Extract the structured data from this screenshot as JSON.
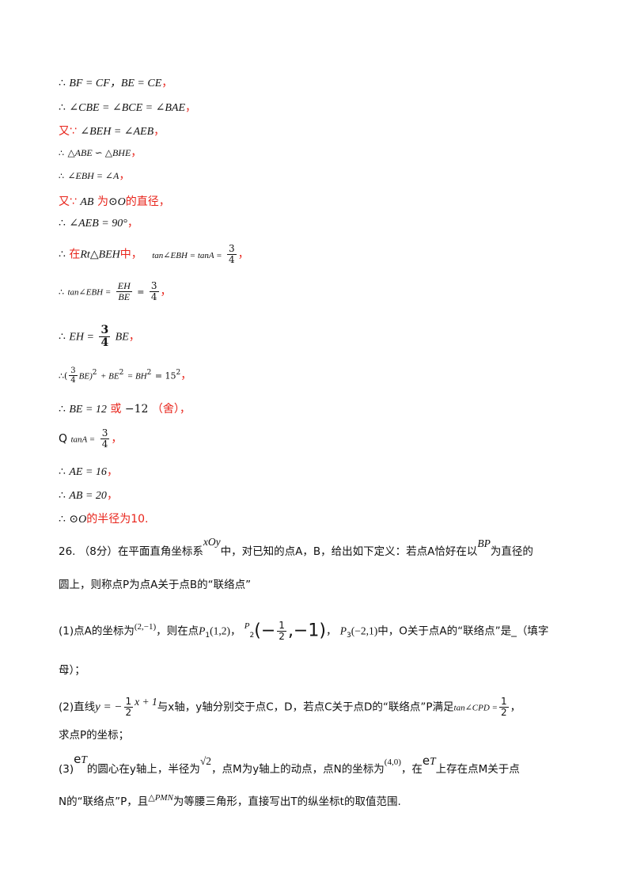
{
  "therefore": "∴",
  "because": "∵",
  "you": "又",
  "lines": {
    "l1": "BF = CF，BE = CE",
    "l1_end": "，",
    "l2": "∠CBE = ∠BCE = ∠BAE",
    "l2_end": "，",
    "l3_pre": "又∵",
    "l3": "∠BEH = ∠AEB",
    "l3_end": "，",
    "l4": "△ABE ∽ △BHE",
    "l4_end": "，",
    "l5": "∠EBH = ∠A",
    "l5_end": "，",
    "l6_pre": "又∵",
    "l6_a": "AB",
    "l6_mid": "为",
    "l6_circle": "⊙O",
    "l6_end": "的直径，",
    "l7": "∠AEB = 90°",
    "l7_end": "，",
    "l8_pre": "在",
    "l8_tri": "Rt△BEH",
    "l8_mid": "中，",
    "l8_tan": "tan∠EBH = tanA =",
    "l8_num": "3",
    "l8_den": "4",
    "l8_end": "，",
    "l9_tan": "tan∠EBH =",
    "l9_num": "EH",
    "l9_den": "BE",
    "l9_eq": "=",
    "l9_num2": "3",
    "l9_den2": "4",
    "l9_end": "，",
    "l10_lhs": "EH =",
    "l10_num": "3",
    "l10_den": "4",
    "l10_rhs": "BE",
    "l10_end": "，",
    "l11_a": "(",
    "l11_num": "3",
    "l11_den": "4",
    "l11_b": "BE)",
    "l11_sq": "2",
    "l11_c": "+ BE",
    "l11_sq2": "2",
    "l11_d": "= BH",
    "l11_sq3": "2",
    "l11_e": "= 15",
    "l11_sq4": "2",
    "l11_end": "，",
    "l12": "BE = 12",
    "l12_or": "或",
    "l12_neg": "−12",
    "l12_rej": "（舍），",
    "l13_q": "Q",
    "l13_tan": "tanA =",
    "l13_num": "3",
    "l13_den": "4",
    "l13_end": "，",
    "l14": "AE = 16",
    "l14_end": "，",
    "l15": "AB = 20",
    "l15_end": "，",
    "l16_circle": "⊙O",
    "l16_end": "的半径为10."
  },
  "problem": {
    "p1_num": "26.",
    "p1_pts": "（8分）在平面直角坐标系",
    "p1_xoy": "xOy",
    "p1_text": "中，对已知的点A，B，给出如下定义：若点A恰好在以",
    "p1_bp": "BP",
    "p1_tail": "为直径的",
    "p2": "圆上，则称点P为点A关于点B的“联络点”",
    "q1_a": "(1)点A的坐标为",
    "q1_coordA": "(2,−1)",
    "q1_b": "，则在点",
    "q1_p1": "P",
    "q1_p1s": "1",
    "q1_p1c": "(1,2)",
    "q1_sep1": "，",
    "q1_p2": "P",
    "q1_p2s": "2",
    "q1_p2l": "(−",
    "q1_p2num": "1",
    "q1_p2den": "2",
    "q1_p2r": ",−1)",
    "q1_sep2": "，",
    "q1_p3": "P",
    "q1_p3s": "3",
    "q1_p3c": "(−2,1)",
    "q1_c": "中，O关于点A的“联络点”是_（填字",
    "q1_d": "母）；",
    "q2_a": "(2)直线",
    "q2_y": "y = −",
    "q2_num": "1",
    "q2_den": "2",
    "q2_rest": "x + 1",
    "q2_b": "与x轴，y轴分别交于点C，D，若点C关于点D的“联络点”P满足",
    "q2_tan": "tan∠CPD =",
    "q2_num2": "1",
    "q2_den2": "2",
    "q2_end": "，",
    "q2_c": "求点P的坐标；",
    "q3_a": "(3)",
    "q3_e": "e",
    "q3_T": "T",
    "q3_b": "的圆心在y轴上，半径为",
    "q3_sqrt": "√2",
    "q3_c": "，点M为y轴上的动点，点N的坐标为",
    "q3_n": "(4,0)",
    "q3_d": "，在",
    "q3_e2": "e",
    "q3_T2": "T",
    "q3_f": "上存在点M关于点",
    "q3_g": "N的“联络点”P，且",
    "q3_tri": "△PMN",
    "q3_h": "为等腰三角形，直接写出T的纵坐标t的取值范围."
  }
}
